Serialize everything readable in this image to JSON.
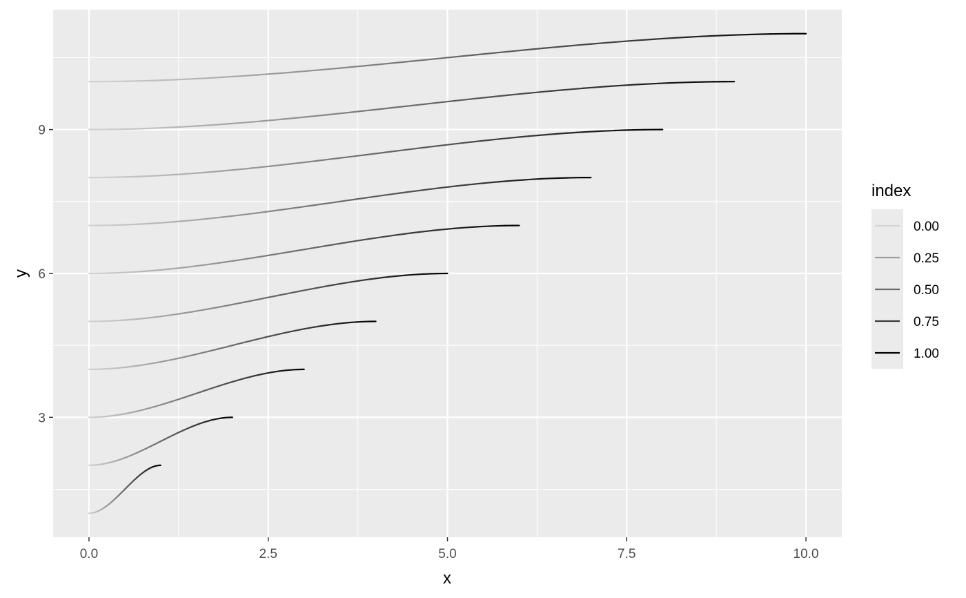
{
  "chart_data": {
    "type": "line",
    "xlabel": "x",
    "ylabel": "y",
    "xlim": [
      -0.5,
      10.5
    ],
    "ylim": [
      0.5,
      11.5
    ],
    "x_ticks": [
      {
        "value": 0,
        "label": "0.0"
      },
      {
        "value": 2.5,
        "label": "2.5"
      },
      {
        "value": 5,
        "label": "5.0"
      },
      {
        "value": 7.5,
        "label": "7.5"
      },
      {
        "value": 10,
        "label": "10.0"
      }
    ],
    "y_ticks": [
      {
        "value": 3,
        "label": "3"
      },
      {
        "value": 6,
        "label": "6"
      },
      {
        "value": 9,
        "label": "9"
      }
    ],
    "x_minor": [
      1.25,
      3.75,
      6.25,
      8.75
    ],
    "y_minor": [
      1.5,
      4.5,
      7.5,
      10.5
    ],
    "grid": true,
    "series": [
      {
        "x_start": 0,
        "x_end": 1,
        "y_start": 1,
        "y_end": 2
      },
      {
        "x_start": 0,
        "x_end": 2,
        "y_start": 2,
        "y_end": 3
      },
      {
        "x_start": 0,
        "x_end": 3,
        "y_start": 3,
        "y_end": 4
      },
      {
        "x_start": 0,
        "x_end": 4,
        "y_start": 4,
        "y_end": 5
      },
      {
        "x_start": 0,
        "x_end": 5,
        "y_start": 5,
        "y_end": 6
      },
      {
        "x_start": 0,
        "x_end": 6,
        "y_start": 6,
        "y_end": 7
      },
      {
        "x_start": 0,
        "x_end": 7,
        "y_start": 7,
        "y_end": 8
      },
      {
        "x_start": 0,
        "x_end": 8,
        "y_start": 8,
        "y_end": 9
      },
      {
        "x_start": 0,
        "x_end": 9,
        "y_start": 9,
        "y_end": 10
      },
      {
        "x_start": 0,
        "x_end": 10,
        "y_start": 10,
        "y_end": 11
      }
    ],
    "color_scale": {
      "low": "#d4d4d4",
      "high": "#000000"
    },
    "legend": {
      "title": "index",
      "placement": "right",
      "entries": [
        {
          "value": 0.0,
          "label": "0.00",
          "color": "#d4d4d4"
        },
        {
          "value": 0.25,
          "label": "0.25",
          "color": "#9e9e9e"
        },
        {
          "value": 0.5,
          "label": "0.50",
          "color": "#6b6b6b"
        },
        {
          "value": 0.75,
          "label": "0.75",
          "color": "#3b3b3b"
        },
        {
          "value": 1.0,
          "label": "1.00",
          "color": "#000000"
        }
      ]
    },
    "colors": {
      "panel": "#ebebeb",
      "grid": "#ffffff",
      "tick": "#333333"
    }
  }
}
